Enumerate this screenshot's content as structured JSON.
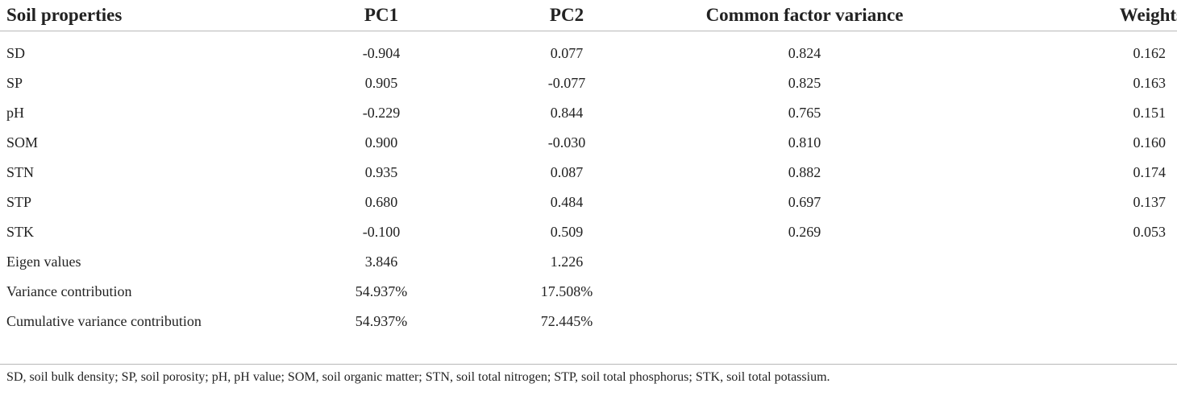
{
  "table": {
    "headers": [
      "Soil properties",
      "PC1",
      "PC2",
      "Common factor variance",
      "Weights"
    ],
    "rows": [
      [
        "SD",
        "-0.904",
        "0.077",
        "0.824",
        "0.162"
      ],
      [
        "SP",
        "0.905",
        "-0.077",
        "0.825",
        "0.163"
      ],
      [
        "pH",
        "-0.229",
        "0.844",
        "0.765",
        "0.151"
      ],
      [
        "SOM",
        "0.900",
        "-0.030",
        "0.810",
        "0.160"
      ],
      [
        "STN",
        "0.935",
        "0.087",
        "0.882",
        "0.174"
      ],
      [
        "STP",
        "0.680",
        "0.484",
        "0.697",
        "0.137"
      ],
      [
        "STK",
        "-0.100",
        "0.509",
        "0.269",
        "0.053"
      ],
      [
        "Eigen values",
        "3.846",
        "1.226",
        "",
        ""
      ],
      [
        "Variance contribution",
        "54.937%",
        "17.508%",
        "",
        ""
      ],
      [
        "Cumulative variance contribution",
        "54.937%",
        "72.445%",
        "",
        ""
      ]
    ]
  },
  "footnote": "SD, soil bulk density; SP, soil porosity; pH, pH value; SOM, soil organic matter; STN, soil total nitrogen; STP, soil total phosphorus; STK, soil total potassium."
}
